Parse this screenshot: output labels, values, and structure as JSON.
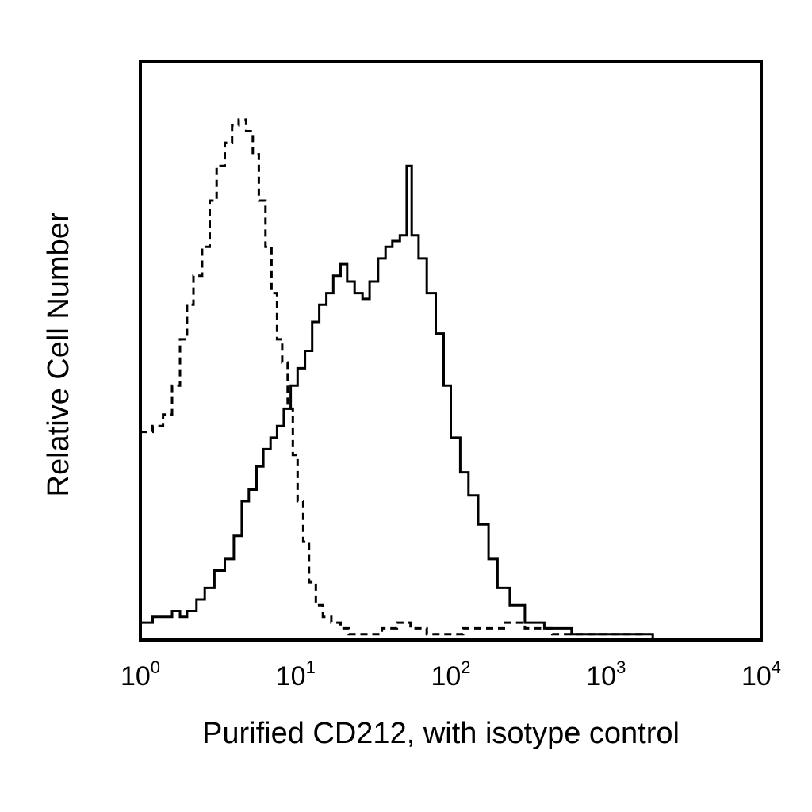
{
  "chart_data": {
    "type": "line",
    "title": "",
    "xlabel": "Purified CD212, with isotype control",
    "ylabel": "Relative Cell Number",
    "x_scale": "log",
    "xlim": [
      1,
      10000
    ],
    "ylim": [
      0,
      100
    ],
    "x_ticks": [
      {
        "value": 1,
        "base": "10",
        "exp": "0"
      },
      {
        "value": 10,
        "base": "10",
        "exp": "1"
      },
      {
        "value": 100,
        "base": "10",
        "exp": "2"
      },
      {
        "value": 1000,
        "base": "10",
        "exp": "3"
      },
      {
        "value": 10000,
        "base": "10",
        "exp": "4"
      }
    ],
    "grid": false,
    "legend": "none",
    "series": [
      {
        "style": "dashed",
        "color": "#000000",
        "x": [
          1.0,
          1.2,
          1.4,
          1.6,
          1.8,
          2.0,
          2.2,
          2.5,
          2.8,
          3.1,
          3.5,
          3.9,
          4.3,
          4.8,
          5.3,
          5.8,
          6.4,
          7.0,
          7.6,
          8.2,
          8.9,
          9.6,
          10.3,
          11.2,
          12.2,
          13.5,
          15.0,
          17.0,
          19.5,
          22.0,
          25.0,
          30.0,
          36.0,
          45.0,
          55.0,
          70.0,
          90.0,
          120.0,
          160.0,
          220.0,
          300.0,
          450.0,
          700.0,
          1100.0,
          1700.0
        ],
        "y": [
          36,
          37,
          39,
          44,
          52,
          58,
          63,
          68,
          76,
          82,
          86,
          89,
          90,
          88,
          84,
          76,
          68,
          60,
          52,
          48,
          40,
          32,
          24,
          17,
          10,
          6,
          4,
          3,
          2,
          1,
          1,
          1,
          2,
          3,
          2,
          1,
          1,
          2,
          2,
          3,
          2,
          1,
          1,
          1,
          0
        ]
      },
      {
        "style": "solid",
        "color": "#000000",
        "x": [
          1.0,
          1.2,
          1.4,
          1.6,
          1.8,
          2.0,
          2.3,
          2.6,
          3.0,
          3.5,
          4.0,
          4.5,
          5.0,
          5.6,
          6.2,
          6.9,
          7.6,
          8.4,
          9.3,
          10.3,
          11.5,
          12.8,
          14.2,
          15.8,
          17.5,
          19.5,
          21.5,
          24.0,
          27.0,
          30.0,
          34.0,
          38.0,
          42.0,
          47.0,
          52.0,
          56.0,
          62.0,
          70.0,
          80.0,
          90.0,
          100.0,
          115.0,
          130.0,
          150.0,
          175.0,
          200.0,
          240.0,
          300.0,
          400.0,
          600.0,
          900.0,
          1400.0,
          2000.0
        ],
        "y": [
          3,
          4,
          4,
          5,
          4,
          5,
          7,
          9,
          12,
          14,
          18,
          24,
          26,
          30,
          33,
          35,
          37,
          40,
          44,
          47,
          50,
          55,
          58,
          60,
          63,
          65,
          62,
          60,
          59,
          62,
          66,
          68,
          69,
          70,
          82,
          70,
          66,
          60,
          53,
          44,
          35,
          29,
          25,
          20,
          14,
          9,
          6,
          3,
          2,
          1,
          1,
          1,
          0
        ]
      }
    ]
  }
}
